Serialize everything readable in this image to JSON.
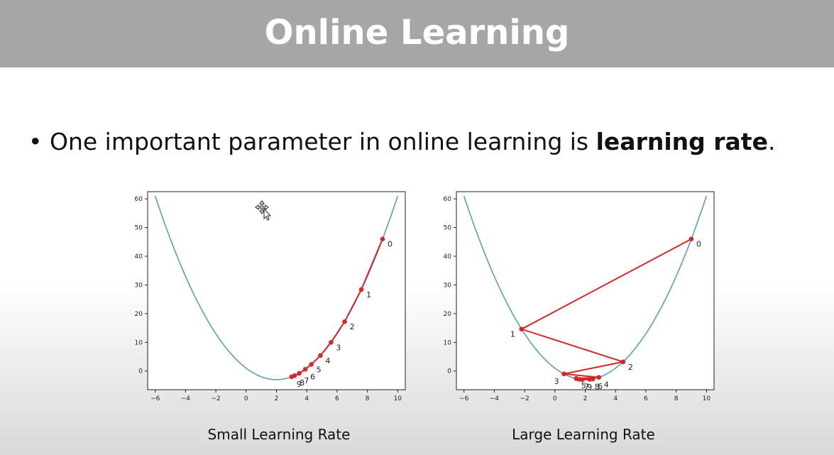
{
  "slide": {
    "title": "Online Learning",
    "bullet_prefix": "One important parameter in online learning is ",
    "bullet_bold": "learning rate",
    "bullet_suffix": "."
  },
  "colors": {
    "curve": "#5b9bc4",
    "path": "#d62728",
    "title_bar": "#a6a6a6"
  },
  "icons": {
    "cursor": "move-cursor-icon"
  },
  "chart_data": [
    {
      "type": "line",
      "title": "",
      "caption": "Small Learning Rate",
      "xlabel": "",
      "ylabel": "",
      "xlim": [
        -6.5,
        10.5
      ],
      "ylim": [
        -6.5,
        62.5
      ],
      "xticks": [
        -6,
        -4,
        -2,
        0,
        2,
        4,
        6,
        8,
        10
      ],
      "yticks": [
        0,
        10,
        20,
        30,
        40,
        50,
        60
      ],
      "curve": {
        "x_range": [
          -6,
          10
        ],
        "function": "(x-2)^2 - 3"
      },
      "series": [
        {
          "type": "line+points",
          "points": [
            {
              "x": 9.0,
              "y": 46.0,
              "label": "0"
            },
            {
              "x": 7.6,
              "y": 28.4,
              "label": "1"
            },
            {
              "x": 6.5,
              "y": 17.2,
              "label": "2"
            },
            {
              "x": 5.6,
              "y": 10.0,
              "label": "3"
            },
            {
              "x": 4.9,
              "y": 5.4,
              "label": "4"
            },
            {
              "x": 4.3,
              "y": 2.3,
              "label": "5"
            },
            {
              "x": 3.9,
              "y": 0.6,
              "label": "6"
            },
            {
              "x": 3.5,
              "y": -0.8,
              "label": "7"
            },
            {
              "x": 3.2,
              "y": -1.6,
              "label": "8"
            },
            {
              "x": 3.0,
              "y": -2.0,
              "label": "9"
            }
          ]
        }
      ]
    },
    {
      "type": "line",
      "title": "",
      "caption": "Large Learning Rate",
      "xlabel": "",
      "ylabel": "",
      "xlim": [
        -6.5,
        10.5
      ],
      "ylim": [
        -6.5,
        62.5
      ],
      "xticks": [
        -6,
        -4,
        -2,
        0,
        2,
        4,
        6,
        8,
        10
      ],
      "yticks": [
        0,
        10,
        20,
        30,
        40,
        50,
        60
      ],
      "curve": {
        "x_range": [
          -6,
          10
        ],
        "function": "(x-2)^2 - 3"
      },
      "series": [
        {
          "type": "line+points",
          "points": [
            {
              "x": 9.0,
              "y": 46.0,
              "label": "0"
            },
            {
              "x": -2.2,
              "y": 14.6,
              "label": "1"
            },
            {
              "x": 4.5,
              "y": 3.2,
              "label": "2"
            },
            {
              "x": 0.6,
              "y": -1.0,
              "label": "3"
            },
            {
              "x": 2.9,
              "y": -2.2,
              "label": "4"
            },
            {
              "x": 1.4,
              "y": -2.6,
              "label": "5"
            },
            {
              "x": 2.5,
              "y": -2.8,
              "label": "6"
            },
            {
              "x": 1.6,
              "y": -2.9,
              "label": "7"
            },
            {
              "x": 2.3,
              "y": -2.9,
              "label": "8"
            },
            {
              "x": 1.8,
              "y": -3.0,
              "label": "9"
            }
          ]
        }
      ]
    }
  ]
}
